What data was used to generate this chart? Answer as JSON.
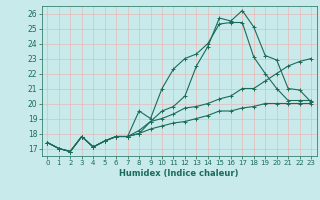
{
  "title": "",
  "xlabel": "Humidex (Indice chaleur)",
  "bg_color": "#c8eaea",
  "grid_color": "#e8b8b8",
  "line_color": "#1a6b5a",
  "xlim": [
    -0.5,
    23.5
  ],
  "ylim": [
    16.5,
    26.5
  ],
  "xticks": [
    0,
    1,
    2,
    3,
    4,
    5,
    6,
    7,
    8,
    9,
    10,
    11,
    12,
    13,
    14,
    15,
    16,
    17,
    18,
    19,
    20,
    21,
    22,
    23
  ],
  "yticks": [
    17,
    18,
    19,
    20,
    21,
    22,
    23,
    24,
    25,
    26
  ],
  "series": [
    [
      17.4,
      17.0,
      16.8,
      17.8,
      17.1,
      17.5,
      17.8,
      17.8,
      18.0,
      18.8,
      19.5,
      19.8,
      20.5,
      22.5,
      23.8,
      25.7,
      25.5,
      26.2,
      25.1,
      23.2,
      22.9,
      21.0,
      20.9,
      20.1
    ],
    [
      17.4,
      17.0,
      16.8,
      17.8,
      17.1,
      17.5,
      17.8,
      17.8,
      19.5,
      19.0,
      21.0,
      22.3,
      23.0,
      23.3,
      24.0,
      25.3,
      25.4,
      25.4,
      23.1,
      22.0,
      21.0,
      20.2,
      20.2,
      20.2
    ],
    [
      17.4,
      17.0,
      16.8,
      17.8,
      17.1,
      17.5,
      17.8,
      17.8,
      18.2,
      18.8,
      19.0,
      19.3,
      19.7,
      19.8,
      20.0,
      20.3,
      20.5,
      21.0,
      21.0,
      21.5,
      22.0,
      22.5,
      22.8,
      23.0
    ],
    [
      17.4,
      17.0,
      16.8,
      17.8,
      17.1,
      17.5,
      17.8,
      17.8,
      18.0,
      18.3,
      18.5,
      18.7,
      18.8,
      19.0,
      19.2,
      19.5,
      19.5,
      19.7,
      19.8,
      20.0,
      20.0,
      20.0,
      20.0,
      20.0
    ]
  ]
}
